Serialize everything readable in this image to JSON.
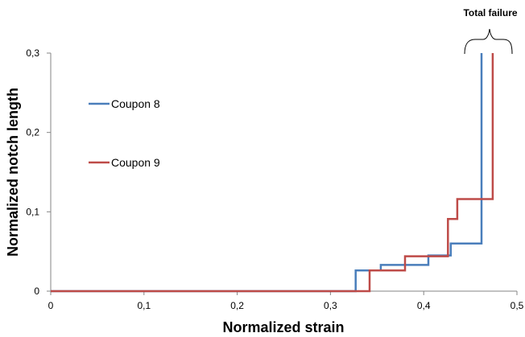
{
  "chart_data": {
    "type": "line",
    "title": "",
    "xlabel": "Normalized strain",
    "ylabel": "Normalized notch length",
    "xlim": [
      0,
      0.5
    ],
    "ylim": [
      0,
      0.3
    ],
    "x_ticks": [
      "0",
      "0,1",
      "0,2",
      "0,3",
      "0,4",
      "0,5"
    ],
    "x_tick_values": [
      0,
      0.1,
      0.2,
      0.3,
      0.4,
      0.5
    ],
    "y_ticks": [
      "0",
      "0,1",
      "0,2",
      "0,3"
    ],
    "y_tick_values": [
      0,
      0.1,
      0.2,
      0.3
    ],
    "grid": false,
    "step": "post",
    "legend_placement": "left",
    "series": [
      {
        "name": "Coupon 8",
        "color": "#4a7ebb",
        "x": [
          0,
          0.327,
          0.354,
          0.405,
          0.429,
          0.462,
          0.462
        ],
        "y": [
          0,
          0.026,
          0.033,
          0.045,
          0.06,
          0.3,
          0.3
        ]
      },
      {
        "name": "Coupon 9",
        "color": "#be4b48",
        "x": [
          0,
          0.342,
          0.38,
          0.426,
          0.436,
          0.474,
          0.474
        ],
        "y": [
          0,
          0.026,
          0.044,
          0.091,
          0.116,
          0.3,
          0.3
        ]
      }
    ],
    "annotations": [
      {
        "text": "Total failure",
        "brace": true
      }
    ]
  }
}
